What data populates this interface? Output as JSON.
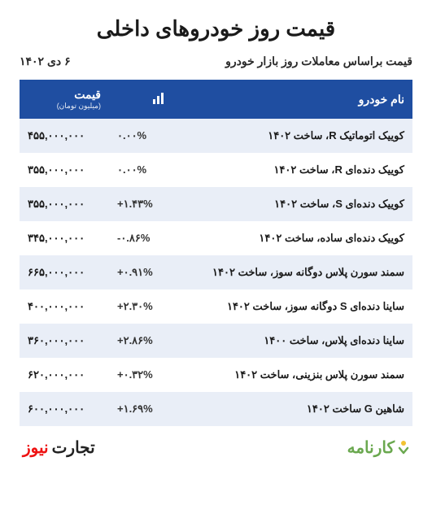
{
  "header": {
    "title": "قیمت روز خودروهای داخلی",
    "subtitle": "قیمت براساس معاملات روز بازار خودرو",
    "date": "۶ دی ۱۴۰۲"
  },
  "table": {
    "header_bg": "#1f4ea1",
    "row_alt_bg": "#e9eef7",
    "columns": {
      "name": "نام خودرو",
      "change_icon": "chart-icon",
      "price": "قیمت",
      "price_unit": "(میلیون تومان)"
    },
    "rows": [
      {
        "name": "کوییک اتوماتیک R، ساخت ۱۴۰۲",
        "change": "۰.۰۰%",
        "price": "۴۵۵,۰۰۰,۰۰۰"
      },
      {
        "name": "کوییک دنده‌ای R، ساخت ۱۴۰۲",
        "change": "۰.۰۰%",
        "price": "۳۵۵,۰۰۰,۰۰۰"
      },
      {
        "name": "کوییک دنده‌ای S، ساخت ۱۴۰۲",
        "change": "+۱.۴۳%",
        "price": "۳۵۵,۰۰۰,۰۰۰"
      },
      {
        "name": "کوییک دنده‌ای ساده، ساخت ۱۴۰۲",
        "change": "-۰.۸۶%",
        "price": "۳۴۵,۰۰۰,۰۰۰"
      },
      {
        "name": "سمند سورن پلاس دوگانه سوز، ساخت ۱۴۰۲",
        "change": "+۰.۹۱%",
        "price": "۶۶۵,۰۰۰,۰۰۰"
      },
      {
        "name": "ساینا دنده‌ای S دوگانه سوز، ساخت ۱۴۰۲",
        "change": "+۲.۳۰%",
        "price": "۴۰۰,۰۰۰,۰۰۰"
      },
      {
        "name": "ساینا دنده‌ای پلاس، ساخت ۱۴۰۰",
        "change": "+۲.۸۶%",
        "price": "۳۶۰,۰۰۰,۰۰۰"
      },
      {
        "name": "سمند سورن پلاس بنزینی، ساخت ۱۴۰۲",
        "change": "+۰.۳۲%",
        "price": "۶۲۰,۰۰۰,۰۰۰"
      },
      {
        "name": "شاهین G ساخت ۱۴۰۲",
        "change": "+۱.۶۹%",
        "price": "۶۰۰,۰۰۰,۰۰۰"
      }
    ]
  },
  "footer": {
    "brand_left_1": "تجارت",
    "brand_left_2": "نیوز",
    "brand_right": "کارنامه"
  }
}
